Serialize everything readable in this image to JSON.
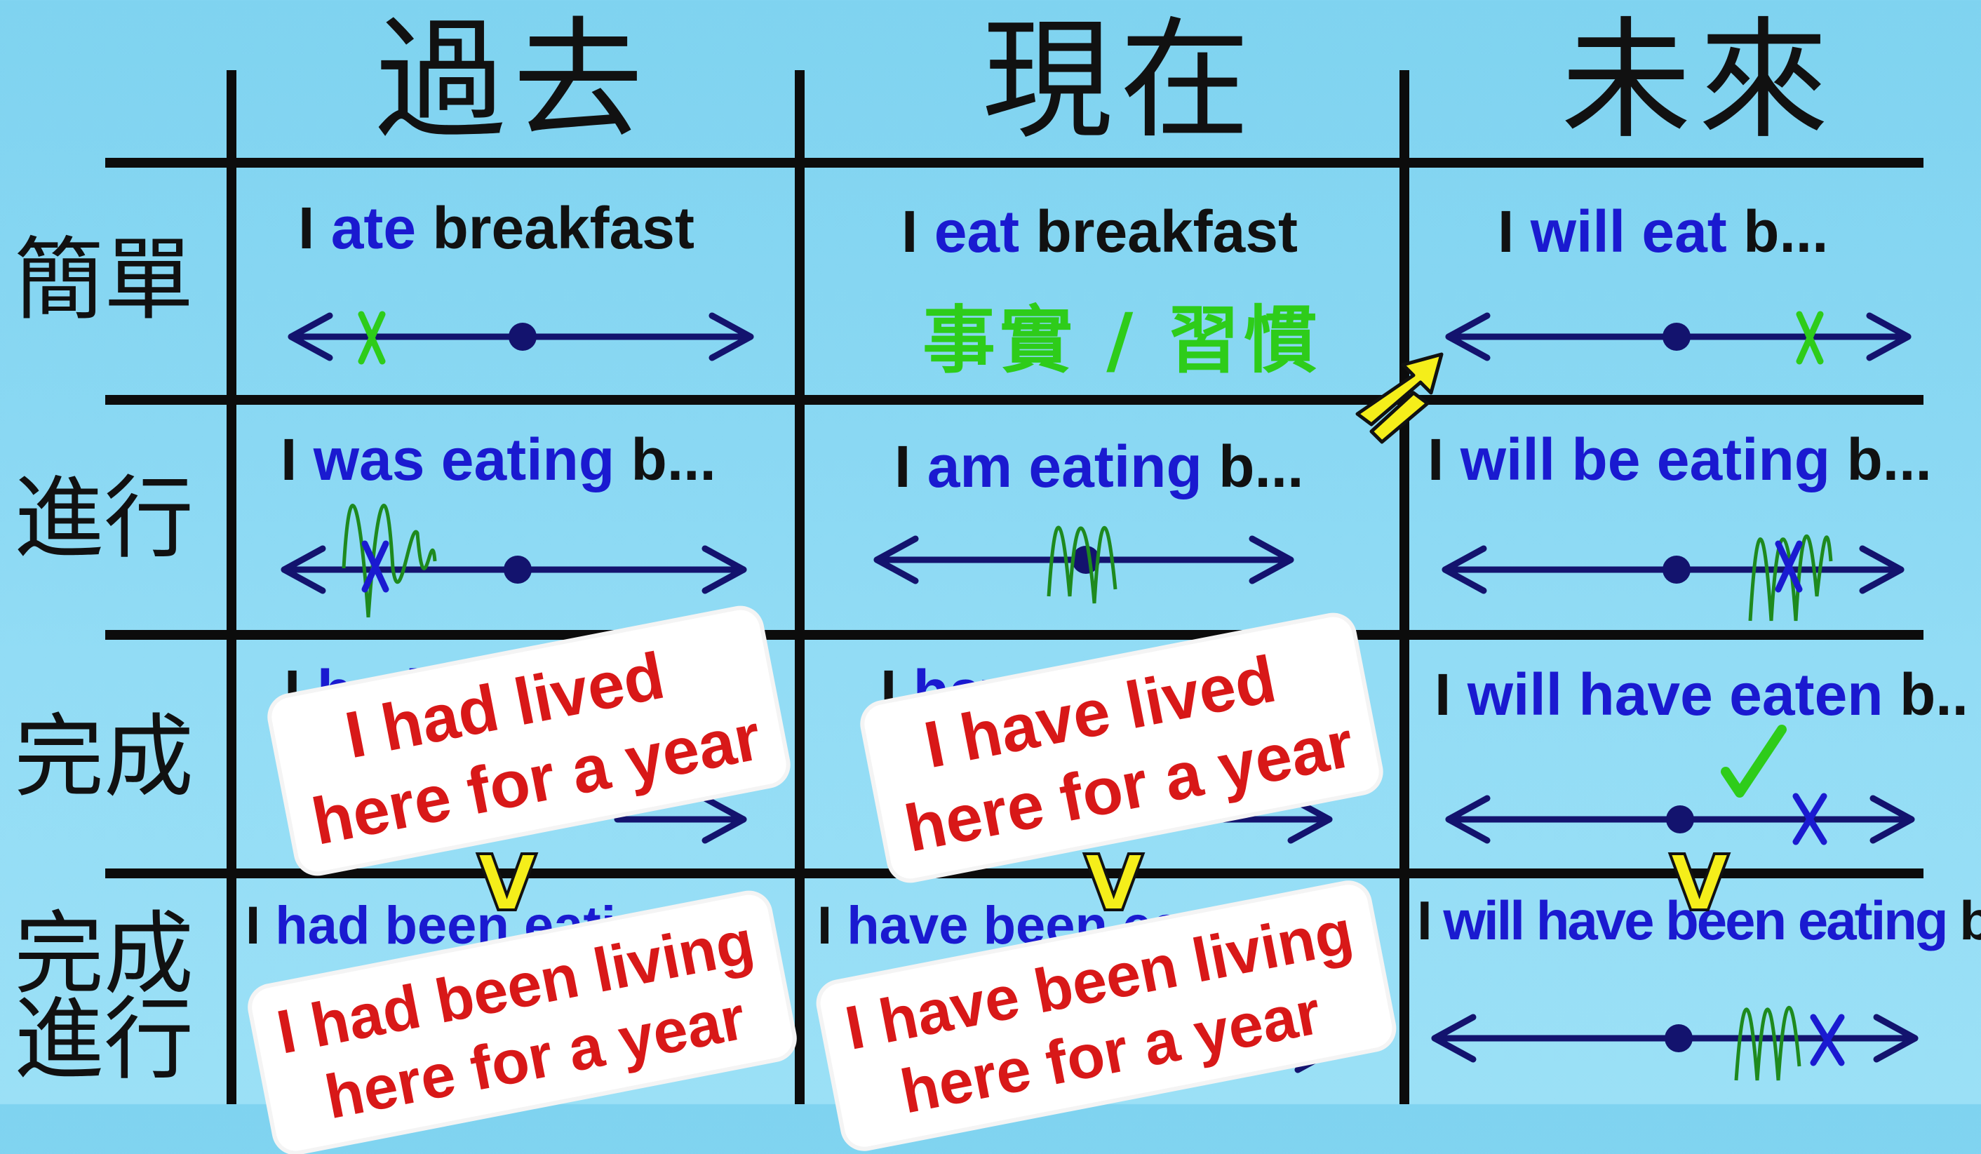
{
  "headers": {
    "past": "過去",
    "present": "現在",
    "future": "未來"
  },
  "rows": {
    "simple": "簡單",
    "progressive": "進行",
    "perfect": "完成",
    "perfect_progressive": "完成\n進行"
  },
  "cells": {
    "simple_past": {
      "subject": "I",
      "verb": "ate",
      "rest": "breakfast"
    },
    "simple_present": {
      "subject": "I",
      "verb": "eat",
      "rest": "breakfast",
      "note": "事實 / 習慣"
    },
    "simple_future": {
      "subject": "I",
      "verb": "will eat",
      "rest": "b..."
    },
    "prog_past": {
      "subject": "I",
      "verb": "was eating",
      "rest": "b..."
    },
    "prog_present": {
      "subject": "I",
      "verb": "am eating",
      "rest": "b..."
    },
    "prog_future": {
      "subject": "I",
      "verb": "will be eating",
      "rest": "b..."
    },
    "perf_past": {
      "subject": "I",
      "verb": "had",
      "rest": ""
    },
    "perf_present": {
      "subject": "I",
      "verb": "have e",
      "rest": "..."
    },
    "perf_future": {
      "subject": "I",
      "verb": "will have eaten",
      "rest": "b.."
    },
    "pp_past": {
      "subject": "I",
      "verb": "had been eati",
      "rest": ""
    },
    "pp_present": {
      "subject": "I",
      "verb": "have been ea",
      "rest": ""
    },
    "pp_future": {
      "subject": "I",
      "verb": "will have been eating",
      "rest": "b..."
    }
  },
  "stickers": {
    "had_lived": {
      "line1": "I had lived",
      "line2": "here for a year"
    },
    "have_lived": {
      "line1": "I have lived",
      "line2": "here for a year"
    },
    "had_been_living": {
      "line1": "I had been living",
      "line2": "here for a year"
    },
    "have_been_living": {
      "line1": "I have been living",
      "line2": "here for a year"
    }
  },
  "marks": {
    "x": "X",
    "check": "✓",
    "v": "V"
  },
  "colors": {
    "background": "#8ad8f3",
    "grid": "#0c0c0c",
    "verb": "#1a1ad0",
    "timeline": "#13136e",
    "green": "#2ecc1a",
    "sticker_text": "#d81818",
    "arrow_yellow": "#f5ee1a"
  }
}
